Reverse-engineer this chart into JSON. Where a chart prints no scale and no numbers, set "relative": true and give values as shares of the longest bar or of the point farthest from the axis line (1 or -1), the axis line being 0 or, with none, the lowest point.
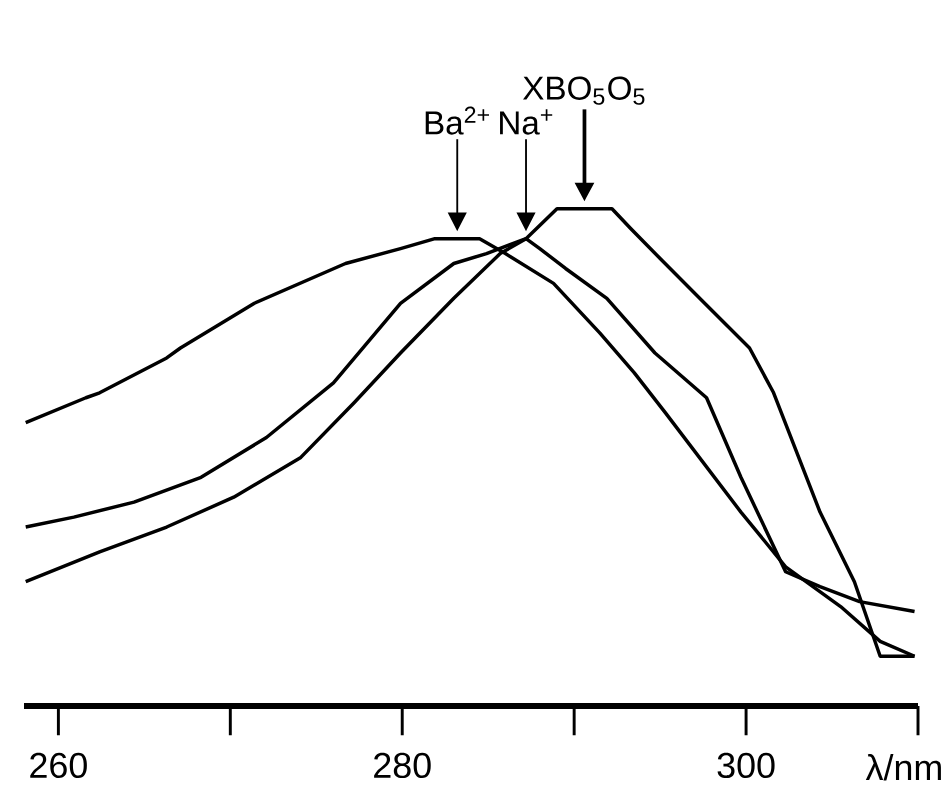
{
  "chart_data": {
    "type": "line",
    "relative": true,
    "xlabel": "λ/nm",
    "xlim": [
      258,
      310
    ],
    "xticks": [
      260,
      {
        "value": 270,
        "label": null
      },
      280,
      {
        "value": 290,
        "label": null
      },
      300,
      {
        "value": 310,
        "label": null
      }
    ],
    "marker": "none",
    "line_style": "solid",
    "annotations": [
      "Ba$^{2+}$",
      "Na$^{+}$",
      "XBO$_{5}$O$_{5}$"
    ],
    "series": [
      {
        "color": "#000000",
        "x": [
          258.1,
          261.6,
          262.4,
          266.3,
          267.1,
          271.4,
          276.7,
          279.9,
          281.9,
          284.5,
          286.0,
          288.8,
          291.5,
          293.5,
          295.3,
          299.7,
          302.3,
          305.5,
          307.8,
          309.8
        ],
        "values": [
          0.57,
          0.62,
          0.63,
          0.7,
          0.72,
          0.81,
          0.89,
          0.92,
          0.94,
          0.94,
          0.91,
          0.85,
          0.75,
          0.67,
          0.59,
          0.39,
          0.28,
          0.2,
          0.13,
          0.1
        ]
      },
      {
        "color": "#000000",
        "x": [
          258.1,
          260.9,
          264.4,
          268.3,
          272.1,
          276.0,
          279.9,
          283.0,
          284.9,
          287.2,
          288.0,
          289.5,
          291.9,
          294.7,
          297.7,
          299.7,
          302.3,
          304.3,
          306.6,
          309.8
        ],
        "values": [
          0.36,
          0.38,
          0.41,
          0.46,
          0.54,
          0.65,
          0.81,
          0.89,
          0.91,
          0.94,
          0.92,
          0.88,
          0.82,
          0.71,
          0.62,
          0.46,
          0.27,
          0.24,
          0.21,
          0.19
        ]
      },
      {
        "color": "#000000",
        "x": [
          258.1,
          262.4,
          266.3,
          270.2,
          274.1,
          277.2,
          279.9,
          283.0,
          285.7,
          287.2,
          289.0,
          292.2,
          293.3,
          295.0,
          297.3,
          300.2,
          301.6,
          304.3,
          306.3,
          307.8,
          309.8
        ],
        "values": [
          0.25,
          0.31,
          0.36,
          0.42,
          0.5,
          0.61,
          0.71,
          0.82,
          0.91,
          0.94,
          1.0,
          1.0,
          0.96,
          0.9,
          0.82,
          0.72,
          0.63,
          0.39,
          0.25,
          0.1,
          0.1
        ]
      }
    ]
  }
}
